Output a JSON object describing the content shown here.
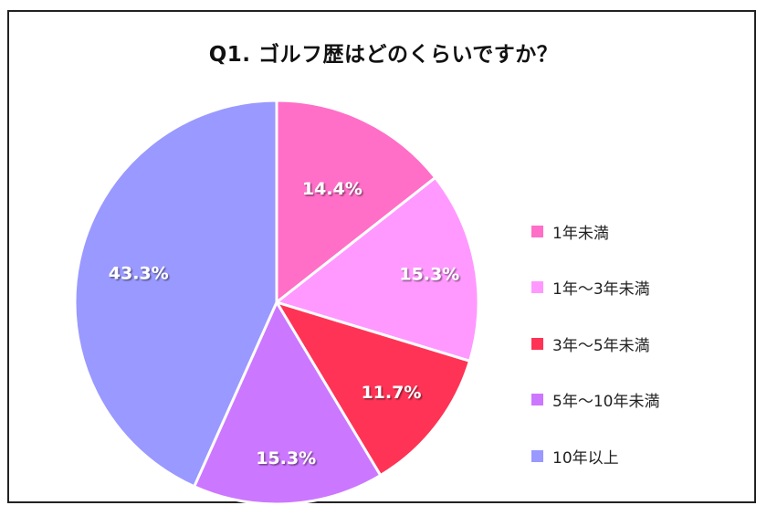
{
  "chart_data": {
    "type": "pie",
    "title": "Q1. ゴルフ歴はどのくらいですか？",
    "categories": [
      "1年未満",
      "1年～3年未満",
      "3年～5年未満",
      "5年～10年未満",
      "10年以上"
    ],
    "values": [
      14.4,
      15.3,
      11.7,
      15.3,
      43.3
    ],
    "labels": [
      "14.4%",
      "15.3%",
      "11.7%",
      "15.3%",
      "43.3%"
    ],
    "colors": [
      "#ff6ec7",
      "#ff99ff",
      "#ff3355",
      "#cc77ff",
      "#9999ff"
    ],
    "legend_position": "right",
    "start_angle": "12 o'clock, clockwise"
  },
  "legend": {
    "items": [
      {
        "label": "1年未満",
        "color": "#ff6ec7"
      },
      {
        "label": "1年～3年未満",
        "color": "#ff99ff"
      },
      {
        "label": "3年～5年未満",
        "color": "#ff3355"
      },
      {
        "label": "5年～10年未満",
        "color": "#cc77ff"
      },
      {
        "label": "10年以上",
        "color": "#9999ff"
      }
    ]
  }
}
